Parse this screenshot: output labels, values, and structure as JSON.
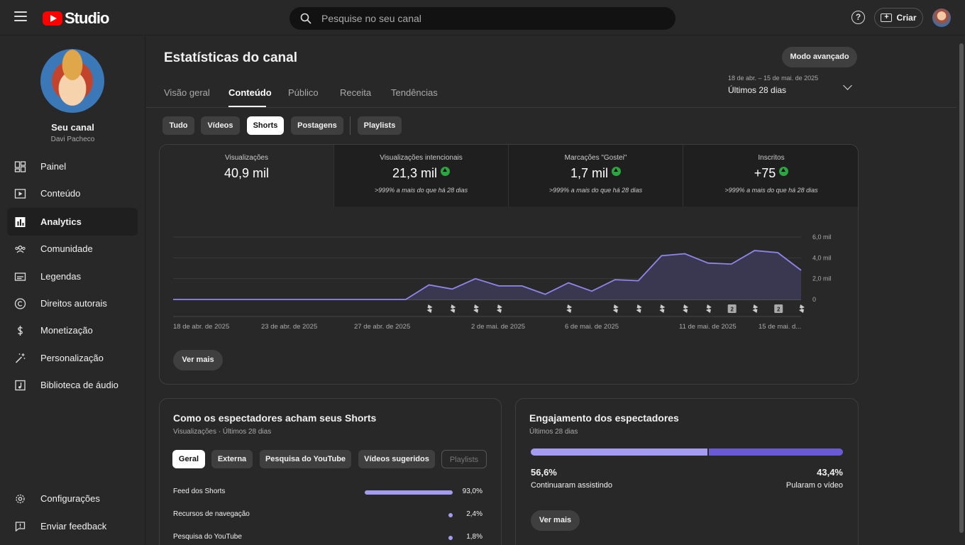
{
  "topbar": {
    "logo_text": "Studio",
    "search_placeholder": "Pesquise no seu canal",
    "help_label": "?",
    "create_label": "Criar"
  },
  "sidebar": {
    "channel_name": "Seu canal",
    "channel_handle": "Davi Pacheco",
    "items": [
      {
        "label": "Painel",
        "icon": "dashboard-icon"
      },
      {
        "label": "Conteúdo",
        "icon": "content-icon"
      },
      {
        "label": "Analytics",
        "icon": "analytics-icon"
      },
      {
        "label": "Comunidade",
        "icon": "community-icon"
      },
      {
        "label": "Legendas",
        "icon": "subtitles-icon"
      },
      {
        "label": "Direitos autorais",
        "icon": "copyright-icon"
      },
      {
        "label": "Monetização",
        "icon": "dollar-icon"
      },
      {
        "label": "Personalização",
        "icon": "magic-wand-icon"
      },
      {
        "label": "Biblioteca de áudio",
        "icon": "audio-library-icon"
      }
    ],
    "bottom_items": [
      {
        "label": "Configurações",
        "icon": "gear-icon"
      },
      {
        "label": "Enviar feedback",
        "icon": "feedback-icon"
      }
    ],
    "active_item": "Analytics"
  },
  "header": {
    "title": "Estatísticas do canal",
    "advanced_mode": "Modo avançado",
    "tabs": [
      "Visão geral",
      "Conteúdo",
      "Público",
      "Receita",
      "Tendências"
    ],
    "active_tab": "Conteúdo",
    "date_range": "18 de abr. – 15 de mai. de 2025",
    "date_label": "Últimos 28 dias"
  },
  "filters": {
    "chips": [
      "Tudo",
      "Vídeos",
      "Shorts",
      "Postagens",
      "Playlists"
    ],
    "active": "Shorts"
  },
  "metrics": [
    {
      "label": "Visualizações",
      "value": "40,9 mil",
      "sub": ""
    },
    {
      "label": "Visualizações intencionais",
      "value": "21,3 mil",
      "sub": ">999% a mais do que há 28 dias"
    },
    {
      "label": "Marcações \"Gostei\"",
      "value": "1,7 mil",
      "sub": ">999% a mais do que há 28 dias"
    },
    {
      "label": "Inscritos",
      "value": "+75",
      "sub": ">999% a mais do que há 28 dias"
    }
  ],
  "chart_data": {
    "type": "area",
    "title": "",
    "xlabel": "",
    "ylabel": "",
    "x_ticks": [
      "18 de abr. de 2025",
      "23 de abr. de 2025",
      "27 de abr. de 2025",
      "2 de mai. de 2025",
      "6 de mai. de 2025",
      "11 de mai. de 2025",
      "15 de mai. d..."
    ],
    "y_ticks": [
      "6,0 mil",
      "4,0 mil",
      "2,0 mil",
      "0"
    ],
    "ylim": [
      0,
      6000
    ],
    "series": [
      {
        "values": [
          0,
          0,
          0,
          0,
          0,
          0,
          0,
          0,
          0,
          0,
          0,
          1400,
          1000,
          2000,
          1300,
          1300,
          500,
          1600,
          800,
          1900,
          1800,
          4200,
          4400,
          3500,
          3400,
          4700,
          4500,
          2800
        ]
      }
    ],
    "line_color": "#8f86e8",
    "area_color": "#3a3851",
    "upload_marker_days": [
      11,
      12,
      13,
      14,
      17,
      19,
      20,
      21,
      22,
      23,
      24,
      25,
      26,
      27
    ],
    "upload_marker_counts": {
      "24": "2",
      "26": "2"
    }
  },
  "stats_card": {
    "ver_mais": "Ver mais"
  },
  "traffic_sources": {
    "title": "Como os espectadores acham seus Shorts",
    "subtitle": "Visualizações · Últimos 28 dias",
    "chips": [
      "Geral",
      "Externa",
      "Pesquisa do YouTube",
      "Vídeos sugeridos",
      "Playlists"
    ],
    "active": "Geral",
    "rows": [
      {
        "name": "Feed dos Shorts",
        "pct": "93,0%",
        "value": 93.0
      },
      {
        "name": "Recursos de navegação",
        "pct": "2,4%",
        "value": 2.4
      },
      {
        "name": "Pesquisa do YouTube",
        "pct": "1,8%",
        "value": 1.8
      }
    ]
  },
  "engagement": {
    "title": "Engajamento dos espectadores",
    "subtitle": "Últimos 28 dias",
    "stayed_pct": "56,6%",
    "stayed_label": "Continuaram assistindo",
    "stayed_value": 56.6,
    "skipped_pct": "43,4%",
    "skipped_label": "Pularam o vídeo",
    "ver_mais": "Ver mais"
  }
}
